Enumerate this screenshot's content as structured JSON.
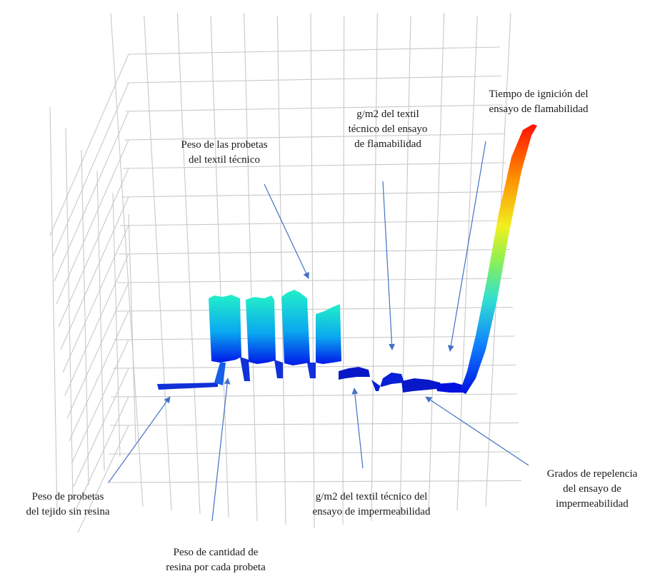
{
  "colors": {
    "grid": "#c8c8c8",
    "arrow": "#4472c4",
    "surface_low": "#0010e0",
    "surface_mid": "#00e0e0",
    "surface_high": "#ff2000"
  },
  "annotations": [
    {
      "id": "peso-probetas-textil",
      "lines": [
        "Peso de las probetas",
        "del textil técnico"
      ]
    },
    {
      "id": "gm2-flamabilidad",
      "lines": [
        "g/m2 del textil",
        "técnico del ensayo",
        "de flamabilidad"
      ]
    },
    {
      "id": "tiempo-ignicion",
      "lines": [
        "Tiempo de ignición del",
        "ensayo de flamabilidad"
      ]
    },
    {
      "id": "peso-probetas-sin-resina",
      "lines": [
        "Peso de probetas",
        "del tejido sin resina"
      ]
    },
    {
      "id": "peso-resina",
      "lines": [
        "Peso de cantidad de",
        "resina por cada probeta"
      ]
    },
    {
      "id": "gm2-impermeabilidad",
      "lines": [
        "g/m2 del textil técnico del",
        "ensayo de impermeabilidad"
      ]
    },
    {
      "id": "grados-repelencia",
      "lines": [
        "Grados de repelencia",
        "del ensayo de",
        "impermeabilidad"
      ]
    }
  ]
}
